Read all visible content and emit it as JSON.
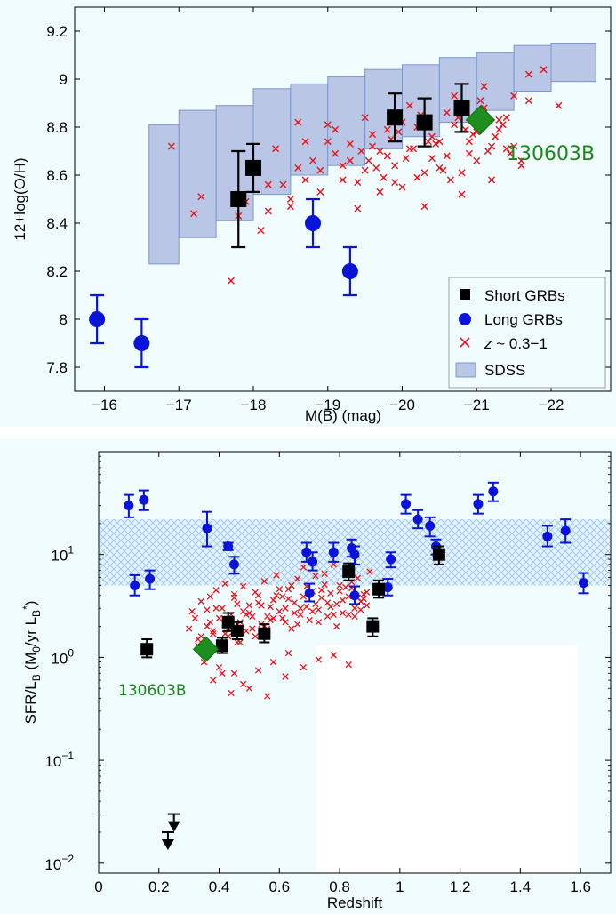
{
  "chart_data": [
    {
      "type": "scatter",
      "xlabel": "M(B)  (mag)",
      "ylabel": "12+log(O/H)",
      "xlim": [
        -15.6,
        -22.8
      ],
      "ylim": [
        7.7,
        9.3
      ],
      "xticks": [
        -16,
        -17,
        -18,
        -19,
        -20,
        -21,
        -22
      ],
      "xtick_labels": [
        "−16",
        "−17",
        "−18",
        "−19",
        "−20",
        "−21",
        "−22"
      ],
      "yticks": [
        7.8,
        8,
        8.2,
        8.4,
        8.6,
        8.8,
        9,
        9.2
      ],
      "ytick_labels": [
        "7.8",
        "8",
        "8.2",
        "8.4",
        "8.6",
        "8.8",
        "9",
        "9.2"
      ],
      "legend": {
        "position": "bottom-right",
        "entries": [
          {
            "label": "Short GRBs",
            "color": "#000000",
            "marker": "square"
          },
          {
            "label": "Long GRBs",
            "color": "#0a14d8",
            "marker": "circle"
          },
          {
            "label_italic": "z",
            "label_rest": " ~ 0.3−1",
            "color": "#e8141c",
            "marker": "x"
          },
          {
            "label": "SDSS",
            "color": "#b9c6e6",
            "marker": "box"
          }
        ]
      },
      "annotation": {
        "text": "130603B",
        "color": "#1a8a1a"
      },
      "sdss_bins": [
        {
          "x0": -16.6,
          "x1": -17.0,
          "y0": 8.23,
          "y1": 8.81
        },
        {
          "x0": -17.0,
          "x1": -17.5,
          "y0": 8.34,
          "y1": 8.87
        },
        {
          "x0": -17.5,
          "x1": -18.0,
          "y0": 8.41,
          "y1": 8.89
        },
        {
          "x0": -18.0,
          "x1": -18.5,
          "y0": 8.52,
          "y1": 8.96
        },
        {
          "x0": -18.5,
          "x1": -19.0,
          "y0": 8.6,
          "y1": 8.98
        },
        {
          "x0": -19.0,
          "x1": -19.5,
          "y0": 8.64,
          "y1": 9.01
        },
        {
          "x0": -19.5,
          "x1": -20.0,
          "y0": 8.71,
          "y1": 9.04
        },
        {
          "x0": -20.0,
          "x1": -20.5,
          "y0": 8.76,
          "y1": 9.06
        },
        {
          "x0": -20.5,
          "x1": -21.0,
          "y0": 8.82,
          "y1": 9.09
        },
        {
          "x0": -21.0,
          "x1": -21.5,
          "y0": 8.87,
          "y1": 9.11
        },
        {
          "x0": -21.5,
          "x1": -22.0,
          "y0": 8.95,
          "y1": 9.14
        },
        {
          "x0": -22.0,
          "x1": -22.6,
          "y0": 8.99,
          "y1": 9.15
        }
      ],
      "short_grbs": [
        {
          "x": -17.8,
          "y": 8.5,
          "lo": 8.3,
          "hi": 8.7
        },
        {
          "x": -18.0,
          "y": 8.63,
          "lo": 8.53,
          "hi": 8.73
        },
        {
          "x": -19.9,
          "y": 8.84,
          "lo": 8.74,
          "hi": 8.94
        },
        {
          "x": -20.3,
          "y": 8.82,
          "lo": 8.72,
          "hi": 8.92
        },
        {
          "x": -20.8,
          "y": 8.88,
          "lo": 8.78,
          "hi": 8.98
        }
      ],
      "long_grbs": [
        {
          "x": -15.9,
          "y": 8.0,
          "lo": 7.9,
          "hi": 8.1
        },
        {
          "x": -16.5,
          "y": 7.9,
          "lo": 7.8,
          "hi": 8.0
        },
        {
          "x": -18.8,
          "y": 8.4,
          "lo": 8.3,
          "hi": 8.5
        },
        {
          "x": -19.3,
          "y": 8.2,
          "lo": 8.1,
          "hi": 8.3
        }
      ],
      "grb_130603b": {
        "x": -21.05,
        "y": 8.83
      },
      "field_z03_1": {
        "x": [
          -16.9,
          -17.2,
          -17.3,
          -17.7,
          -17.8,
          -17.9,
          -18.1,
          -18.2,
          -18.3,
          -18.4,
          -18.5,
          -18.6,
          -18.7,
          -18.8,
          -18.9,
          -19.0,
          -19.1,
          -19.2,
          -19.3,
          -19.4,
          -19.5,
          -19.6,
          -19.7,
          -19.8,
          -19.9,
          -20.0,
          -20.1,
          -20.2,
          -20.3,
          -20.4,
          -20.5,
          -20.6,
          -20.7,
          -20.8,
          -20.9,
          -21.0,
          -21.1,
          -21.2,
          -21.3,
          -21.4,
          -21.5,
          -21.6,
          -21.7,
          -21.9,
          -22.1,
          -18.2,
          -18.6,
          -18.9,
          -19.1,
          -19.3,
          -19.5,
          -19.7,
          -19.9,
          -20.1,
          -20.3,
          -20.5,
          -20.7,
          -20.9,
          -21.1,
          -21.3,
          -21.5,
          -21.7,
          -18.5,
          -18.7,
          -19.0,
          -19.2,
          -19.4,
          -19.6,
          -19.8,
          -20.0,
          -20.2,
          -20.4,
          -20.6,
          -20.8,
          -21.0,
          -21.2,
          -21.4,
          -21.6,
          -19.45,
          -19.65,
          -19.85,
          -20.05,
          -20.25,
          -20.45,
          -20.65,
          -20.85,
          -21.05,
          -21.25,
          -21.45,
          -19.55,
          -19.75,
          -19.95,
          -20.15,
          -20.35,
          -20.55,
          -20.75,
          -20.95,
          -21.15,
          -21.35
        ],
        "y": [
          8.72,
          8.44,
          8.51,
          8.16,
          8.43,
          8.49,
          8.37,
          8.45,
          8.71,
          8.56,
          8.47,
          8.63,
          8.58,
          8.66,
          8.53,
          8.74,
          8.69,
          8.58,
          8.73,
          8.46,
          8.62,
          8.77,
          8.53,
          8.68,
          8.64,
          8.82,
          8.71,
          8.59,
          8.47,
          8.76,
          8.63,
          8.68,
          8.81,
          8.52,
          8.74,
          8.66,
          8.88,
          8.58,
          8.79,
          8.71,
          8.93,
          8.64,
          9.02,
          9.04,
          8.89,
          8.56,
          8.82,
          8.62,
          8.79,
          8.66,
          8.84,
          8.7,
          8.57,
          8.89,
          8.61,
          8.74,
          8.93,
          8.69,
          8.97,
          8.83,
          8.72,
          8.91,
          8.5,
          8.74,
          8.81,
          8.64,
          8.57,
          8.72,
          8.79,
          8.55,
          8.8,
          8.67,
          8.86,
          8.61,
          8.78,
          8.72,
          8.84,
          8.66,
          8.7,
          8.63,
          8.75,
          8.67,
          8.85,
          8.73,
          8.58,
          8.79,
          8.91,
          8.76,
          8.69,
          8.66,
          8.59,
          8.78,
          8.71,
          8.74,
          8.62,
          8.84,
          8.77,
          8.7,
          8.81
        ]
      }
    },
    {
      "type": "scatter",
      "xlabel": "Redshift",
      "ylabel_main": "SFR/L",
      "ylabel_sub1": "B",
      "ylabel_mid": "  (M",
      "ylabel_sub2": "0",
      "ylabel_mid2": "/yr L",
      "ylabel_sub3": "B",
      "ylabel_sup": "*",
      "ylabel_end": ")",
      "y_scale": "log",
      "xlim": [
        0,
        1.7
      ],
      "ylim": [
        0.008,
        100
      ],
      "xticks": [
        0,
        0.2,
        0.4,
        0.6,
        0.8,
        1,
        1.2,
        1.4,
        1.6
      ],
      "xtick_labels": [
        "0",
        "0.2",
        "0.4",
        "0.6",
        "0.8",
        "1",
        "1.2",
        "1.4",
        "1.6"
      ],
      "yticks": [
        0.01,
        0.1,
        1,
        10
      ],
      "ytick_base": [
        "10",
        "10",
        "10",
        "10"
      ],
      "ytick_exp": [
        "−2",
        "−1",
        "0",
        "1"
      ],
      "annotation": {
        "text": "130603B",
        "color": "#1a8a1a"
      },
      "hatched_band": {
        "y_low": 5.0,
        "y_high": 22.0
      },
      "short_grbs": [
        {
          "x": 0.16,
          "y": 1.2,
          "lo": 1.0,
          "hi": 1.5
        },
        {
          "x": 0.41,
          "y": 1.3,
          "lo": 1.1,
          "hi": 1.55
        },
        {
          "x": 0.43,
          "y": 2.2,
          "lo": 1.8,
          "hi": 2.7
        },
        {
          "x": 0.46,
          "y": 1.8,
          "lo": 1.5,
          "hi": 2.2
        },
        {
          "x": 0.55,
          "y": 1.7,
          "lo": 1.4,
          "hi": 2.1
        },
        {
          "x": 0.83,
          "y": 6.8,
          "lo": 5.6,
          "hi": 8.2
        },
        {
          "x": 0.91,
          "y": 2.0,
          "lo": 1.6,
          "hi": 2.4
        },
        {
          "x": 0.93,
          "y": 4.6,
          "lo": 3.8,
          "hi": 5.6
        },
        {
          "x": 1.13,
          "y": 10.0,
          "lo": 8.0,
          "hi": 12.0
        }
      ],
      "upper_limits": [
        {
          "x": 0.23,
          "y": 0.02
        },
        {
          "x": 0.25,
          "y": 0.03
        }
      ],
      "long_grbs": [
        {
          "x": 0.1,
          "y": 30,
          "lo": 23,
          "hi": 38
        },
        {
          "x": 0.12,
          "y": 5.0,
          "lo": 4.0,
          "hi": 6.3
        },
        {
          "x": 0.15,
          "y": 34,
          "lo": 27,
          "hi": 42
        },
        {
          "x": 0.17,
          "y": 5.8,
          "lo": 4.6,
          "hi": 7.0
        },
        {
          "x": 0.36,
          "y": 18,
          "lo": 12,
          "hi": 26
        },
        {
          "x": 0.43,
          "y": 12,
          "lo": 11,
          "hi": 13
        },
        {
          "x": 0.45,
          "y": 8.0,
          "lo": 6.5,
          "hi": 9.5
        },
        {
          "x": 0.69,
          "y": 10.5,
          "lo": 8.5,
          "hi": 13
        },
        {
          "x": 0.7,
          "y": 4.2,
          "lo": 3.5,
          "hi": 5.2
        },
        {
          "x": 0.71,
          "y": 8.5,
          "lo": 7.0,
          "hi": 10.5
        },
        {
          "x": 0.78,
          "y": 10.5,
          "lo": 8.5,
          "hi": 13
        },
        {
          "x": 0.84,
          "y": 11.5,
          "lo": 9.5,
          "hi": 14
        },
        {
          "x": 0.85,
          "y": 10.0,
          "lo": 8.0,
          "hi": 12
        },
        {
          "x": 0.85,
          "y": 4.0,
          "lo": 3.3,
          "hi": 4.9
        },
        {
          "x": 0.96,
          "y": 4.8,
          "lo": 4.0,
          "hi": 5.8
        },
        {
          "x": 0.97,
          "y": 9.0,
          "lo": 7.5,
          "hi": 10.5
        },
        {
          "x": 1.02,
          "y": 31,
          "lo": 25,
          "hi": 38
        },
        {
          "x": 1.06,
          "y": 22,
          "lo": 18,
          "hi": 27
        },
        {
          "x": 1.1,
          "y": 19,
          "lo": 15,
          "hi": 23
        },
        {
          "x": 1.12,
          "y": 12,
          "lo": 10,
          "hi": 14
        },
        {
          "x": 1.26,
          "y": 31,
          "lo": 25,
          "hi": 38
        },
        {
          "x": 1.31,
          "y": 41,
          "lo": 33,
          "hi": 50
        },
        {
          "x": 1.49,
          "y": 15,
          "lo": 12,
          "hi": 19
        },
        {
          "x": 1.55,
          "y": 17,
          "lo": 13,
          "hi": 22
        },
        {
          "x": 1.61,
          "y": 5.3,
          "lo": 4.2,
          "hi": 6.6
        }
      ],
      "grb_130603b": {
        "x": 0.356,
        "y": 1.2
      },
      "field_z03_1": {
        "x": [
          0.3,
          0.32,
          0.33,
          0.34,
          0.35,
          0.36,
          0.37,
          0.38,
          0.39,
          0.4,
          0.41,
          0.42,
          0.43,
          0.44,
          0.45,
          0.46,
          0.47,
          0.48,
          0.49,
          0.5,
          0.51,
          0.52,
          0.53,
          0.54,
          0.55,
          0.56,
          0.57,
          0.58,
          0.59,
          0.6,
          0.61,
          0.62,
          0.63,
          0.64,
          0.65,
          0.66,
          0.67,
          0.68,
          0.69,
          0.7,
          0.71,
          0.72,
          0.73,
          0.74,
          0.75,
          0.76,
          0.77,
          0.78,
          0.79,
          0.8,
          0.81,
          0.82,
          0.83,
          0.84,
          0.85,
          0.86,
          0.87,
          0.88,
          0.89,
          0.9,
          0.31,
          0.34,
          0.37,
          0.4,
          0.43,
          0.46,
          0.49,
          0.52,
          0.55,
          0.58,
          0.61,
          0.64,
          0.67,
          0.7,
          0.73,
          0.76,
          0.79,
          0.82,
          0.85,
          0.88,
          0.33,
          0.36,
          0.39,
          0.42,
          0.45,
          0.48,
          0.51,
          0.54,
          0.57,
          0.6,
          0.63,
          0.66,
          0.69,
          0.72,
          0.75,
          0.78,
          0.81,
          0.84,
          0.87,
          0.35,
          0.38,
          0.41,
          0.44,
          0.47,
          0.5,
          0.53,
          0.56,
          0.59,
          0.62,
          0.65,
          0.68,
          0.71,
          0.74,
          0.77,
          0.8,
          0.83,
          0.86,
          0.89,
          0.48,
          0.53,
          0.58,
          0.63,
          0.68,
          0.73,
          0.78,
          0.83,
          0.38,
          0.44,
          0.5,
          0.56,
          0.62,
          0.45,
          0.4
        ],
        "y": [
          1.9,
          2.4,
          1.5,
          3.5,
          1.1,
          2.9,
          2.2,
          1.7,
          4.5,
          1.3,
          3.0,
          5.2,
          1.9,
          2.6,
          3.8,
          1.4,
          2.2,
          4.9,
          1.8,
          3.2,
          2.5,
          1.6,
          4.0,
          2.1,
          5.5,
          1.9,
          3.1,
          2.4,
          6.3,
          2.8,
          3.9,
          2.2,
          4.6,
          1.9,
          3.4,
          5.8,
          2.6,
          7.5,
          3.1,
          2.3,
          4.4,
          6.2,
          2.9,
          3.8,
          5.1,
          2.5,
          4.2,
          8.0,
          3.3,
          5.0,
          2.7,
          6.6,
          3.9,
          4.7,
          3.0,
          5.9,
          3.5,
          4.1,
          3.2,
          6.8,
          2.8,
          1.6,
          3.9,
          2.4,
          1.6,
          3.3,
          2.6,
          4.3,
          2.0,
          3.6,
          2.4,
          5.0,
          3.0,
          4.1,
          2.2,
          3.4,
          2.0,
          4.8,
          2.5,
          3.7,
          1.3,
          2.0,
          3.0,
          1.7,
          4.1,
          2.8,
          1.9,
          3.2,
          2.3,
          4.6,
          3.7,
          2.1,
          4.9,
          3.3,
          6.5,
          2.6,
          3.6,
          5.4,
          2.9,
          0.9,
          1.8,
          0.7,
          2.3,
          1.4,
          2.7,
          3.4,
          2.5,
          4.0,
          3.0,
          2.7,
          3.9,
          2.8,
          4.5,
          3.1,
          4.4,
          2.6,
          3.8,
          4.3,
          0.55,
          0.75,
          0.9,
          1.1,
          0.8,
          0.95,
          1.05,
          0.85,
          0.6,
          0.45,
          0.5,
          0.42,
          0.65,
          0.7,
          0.8
        ]
      }
    }
  ]
}
